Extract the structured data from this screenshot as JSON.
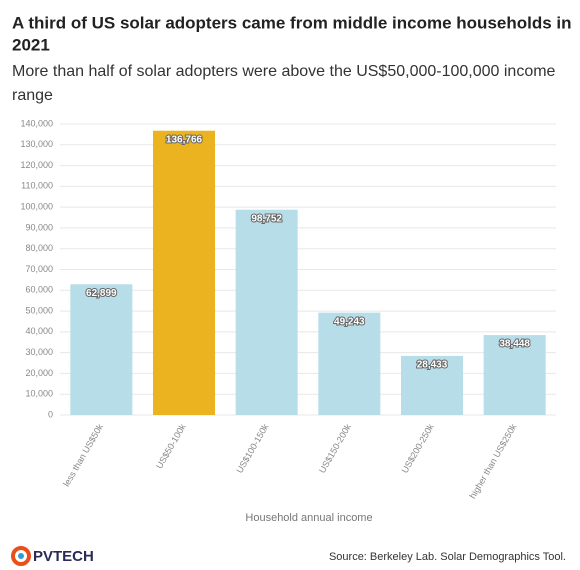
{
  "chart_data": {
    "type": "bar",
    "title": "A third of US solar adopters came from middle income households in 2021",
    "subtitle": "More than half of solar adopters were above the US$50,000-100,000 income range",
    "x_label": "Household annual income",
    "categories": [
      "less than US$50k",
      "US$50-100k",
      "US$100-150k",
      "US$150-200k",
      "US$200-250k",
      "higher than US$250k"
    ],
    "values": [
      62899,
      136766,
      98752,
      49243,
      28433,
      38448
    ],
    "value_labels": [
      "62,899",
      "136,766",
      "98,752",
      "49,243",
      "28,433",
      "38,448"
    ],
    "colors": [
      "#b7dde8",
      "#ebb320",
      "#b7dde8",
      "#b7dde8",
      "#b7dde8",
      "#b7dde8"
    ],
    "ylim": [
      0,
      140000
    ],
    "yticks": [
      0,
      {
        "value": 10000,
        "label": "10,000"
      },
      {
        "value": 20000,
        "label": "20,000"
      },
      {
        "value": 30000,
        "label": "30,000"
      },
      {
        "value": 40000,
        "label": "40,000"
      },
      {
        "value": 50000,
        "label": "50,000"
      },
      {
        "value": 60000,
        "label": "60,000"
      },
      {
        "value": 70000,
        "label": "70,000"
      },
      {
        "value": 80000,
        "label": "80,000"
      },
      {
        "value": 90000,
        "label": "90,000"
      },
      {
        "value": 100000,
        "label": "100,000"
      },
      {
        "value": 110000,
        "label": "110,000"
      },
      {
        "value": 120000,
        "label": "120,000"
      },
      {
        "value": 130000,
        "label": "130,000"
      },
      {
        "value": 140000,
        "label": "140,000"
      }
    ],
    "grid": true,
    "source": "Source: Berkeley Lab. Solar Demographics Tool.",
    "logo": "PVTECH"
  }
}
